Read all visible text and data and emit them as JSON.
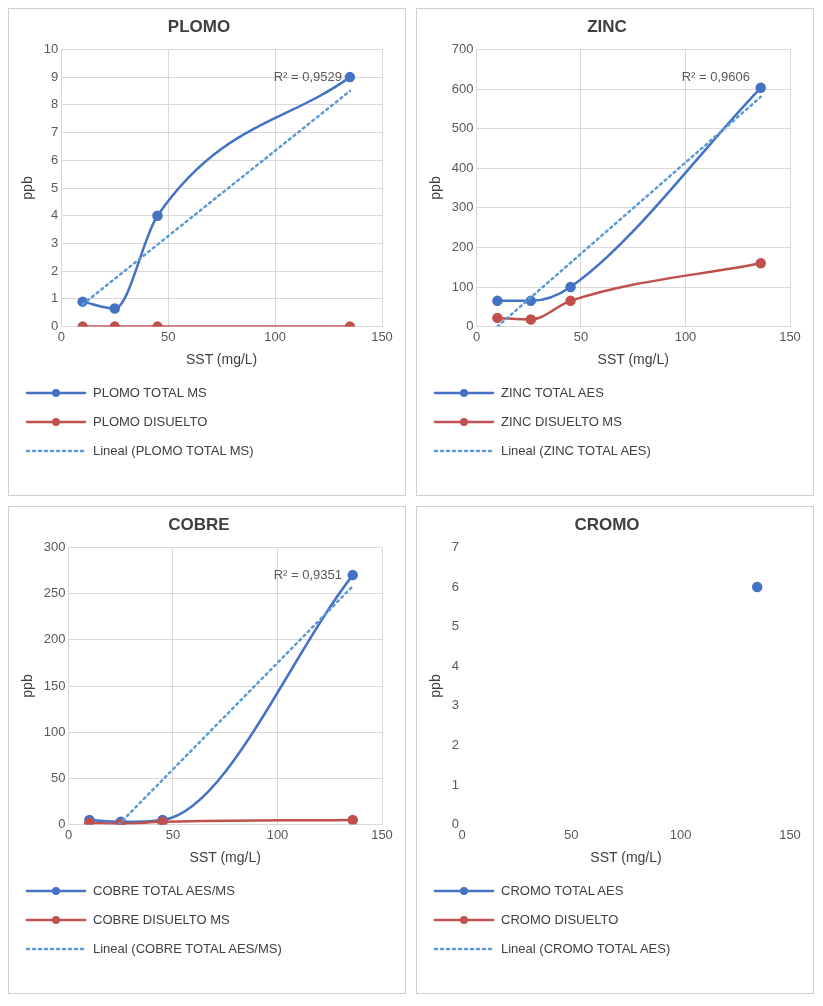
{
  "chart_data": [
    {
      "type": "line",
      "title": "PLOMO",
      "xlabel": "SST (mg/L)",
      "ylabel": "ppb",
      "xlim": [
        0,
        150
      ],
      "xticks": [
        0,
        50,
        100,
        150
      ],
      "ylim": [
        0,
        10
      ],
      "yticks": [
        0,
        1,
        2,
        3,
        4,
        5,
        6,
        7,
        8,
        9,
        10
      ],
      "grid": true,
      "legend": "bottom",
      "marker": "circle",
      "annotations": [
        "R² = 0,9529"
      ],
      "x": [
        10,
        25,
        45,
        135
      ],
      "series": [
        {
          "name": "PLOMO TOTAL MS",
          "color": "#4472c4",
          "values": [
            0.9,
            0.65,
            4,
            9
          ]
        },
        {
          "name": "PLOMO DISUELTO",
          "color": "#c0504d",
          "values": [
            0,
            0,
            0,
            0
          ]
        },
        {
          "name": "Lineal (PLOMO TOTAL MS)",
          "color": "#5b9bd5",
          "type": "line",
          "line_style": "dotted",
          "marker": "none",
          "x": [
            10,
            135
          ],
          "values": [
            0.8,
            8.5
          ]
        }
      ]
    },
    {
      "type": "line",
      "title": "ZINC",
      "xlabel": "SST (mg/L)",
      "ylabel": "ppb",
      "xlim": [
        0,
        150
      ],
      "xticks": [
        0,
        50,
        100,
        150
      ],
      "ylim": [
        0,
        700
      ],
      "yticks": [
        0,
        100,
        200,
        300,
        400,
        500,
        600,
        700
      ],
      "grid": true,
      "legend": "bottom",
      "marker": "circle",
      "annotations": [
        "R² = 0,9606"
      ],
      "x": [
        10,
        26,
        45,
        136
      ],
      "series": [
        {
          "name": "ZINC TOTAL AES",
          "color": "#4472c4",
          "values": [
            65,
            65,
            100,
            603
          ]
        },
        {
          "name": "ZINC DISUELTO MS",
          "color": "#c0504d",
          "values": [
            22,
            18,
            65,
            160
          ]
        },
        {
          "name": "Lineal (ZINC TOTAL AES)",
          "color": "#5b9bd5",
          "type": "line",
          "line_style": "dotted",
          "marker": "none",
          "x": [
            10,
            136
          ],
          "values": [
            0,
            580
          ]
        }
      ]
    },
    {
      "type": "line",
      "title": "COBRE",
      "xlabel": "SST (mg/L)",
      "ylabel": "ppb",
      "xlim": [
        0,
        150
      ],
      "xticks": [
        0,
        50,
        100,
        150
      ],
      "ylim": [
        0,
        300
      ],
      "yticks": [
        0,
        50,
        100,
        150,
        200,
        250,
        300
      ],
      "grid": true,
      "legend": "bottom",
      "marker": "circle",
      "annotations": [
        "R² = 0,9351"
      ],
      "x": [
        10,
        25,
        45,
        136
      ],
      "series": [
        {
          "name": "COBRE TOTAL AES/MS",
          "color": "#4472c4",
          "values": [
            5,
            3,
            5,
            270
          ]
        },
        {
          "name": "COBRE DISUELTO MS",
          "color": "#c0504d",
          "values": [
            2,
            1,
            3,
            5
          ]
        },
        {
          "name": "Lineal (COBRE TOTAL AES/MS)",
          "color": "#5b9bd5",
          "type": "line",
          "line_style": "dotted",
          "marker": "none",
          "x": [
            24,
            136
          ],
          "values": [
            0,
            258
          ]
        }
      ]
    },
    {
      "type": "line",
      "title": "CROMO",
      "xlabel": "SST (mg/L)",
      "ylabel": "ppb",
      "xlim": [
        0,
        150
      ],
      "xticks": [
        0,
        50,
        100,
        150
      ],
      "ylim": [
        0,
        7
      ],
      "yticks": [
        0,
        1,
        2,
        3,
        4,
        5,
        6,
        7
      ],
      "grid": false,
      "legend": "bottom",
      "marker": "circle",
      "x": [
        135
      ],
      "series": [
        {
          "name": "CROMO TOTAL AES",
          "color": "#4472c4",
          "values": [
            6
          ]
        },
        {
          "name": "CROMO DISUELTO",
          "color": "#c0504d",
          "values": [
            null
          ]
        },
        {
          "name": "Lineal (CROMO TOTAL AES)",
          "color": "#5b9bd5",
          "type": "line",
          "line_style": "dotted",
          "marker": "none",
          "values": [
            null
          ]
        }
      ]
    }
  ]
}
